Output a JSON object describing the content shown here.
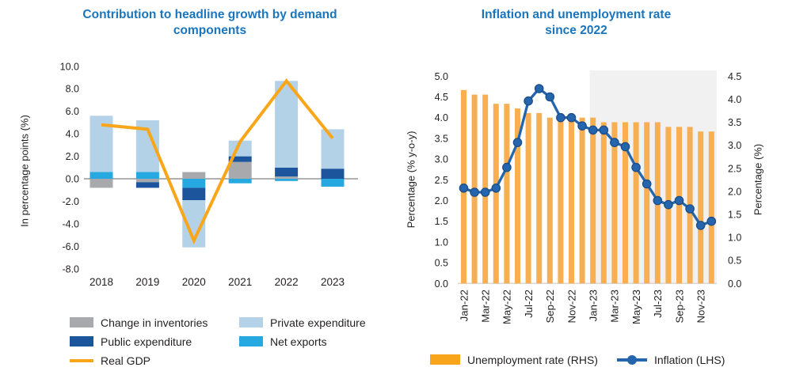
{
  "colors": {
    "title": "#1B75BC",
    "text": "#231F20",
    "inventories": "#A7A9AC",
    "public_expenditure": "#1D559C",
    "private_expenditure": "#B3D2E8",
    "net_exports": "#25A9E0",
    "real_gdp": "#FAA61A",
    "unemployment_bar": "#F7AF52",
    "unemployment_legend": "#F9A51C",
    "inflation": "#2565AE",
    "inflation_marker_edge": "#1B4B84",
    "zero_line": "#808080",
    "baseline": "#D8D8D8",
    "forecast_shade": "#F1F1F2"
  },
  "chart_data": [
    {
      "type": "stacked-bar-line",
      "title": "Contribution to headline growth by demand components",
      "title_lines": [
        "Contribution to headline growth by demand",
        "components"
      ],
      "ylabel": "In percentage points (%)",
      "ylim": [
        -8.0,
        10.0
      ],
      "ytick_step": 2.0,
      "yticks": [
        "10.0",
        "8.0",
        "6.0",
        "4.0",
        "2.0",
        "0.0",
        "-2.0",
        "-4.0",
        "-6.0",
        "-8.0"
      ],
      "categories": [
        "2018",
        "2019",
        "2020",
        "2021",
        "2022",
        "2023"
      ],
      "series": [
        {
          "name": "Change in inventories",
          "color_key": "inventories",
          "values": [
            -0.8,
            -0.3,
            0.6,
            1.5,
            0.2,
            0.0
          ]
        },
        {
          "name": "Net exports",
          "color_key": "net_exports",
          "values": [
            0.6,
            0.6,
            -0.8,
            -0.4,
            -0.2,
            -0.7
          ]
        },
        {
          "name": "Public expenditure",
          "color_key": "public_expenditure",
          "values": [
            0.0,
            -0.5,
            -1.1,
            0.5,
            0.8,
            0.9
          ]
        },
        {
          "name": "Private expenditure",
          "color_key": "private_expenditure",
          "values": [
            5.0,
            4.6,
            -4.2,
            1.4,
            7.7,
            3.5
          ]
        }
      ],
      "line_series": {
        "name": "Real GDP",
        "color_key": "real_gdp",
        "values": [
          4.8,
          4.4,
          -5.5,
          3.3,
          8.7,
          3.6
        ]
      },
      "legend": [
        {
          "label": "Change in inventories",
          "swatch": "rect",
          "color_key": "inventories"
        },
        {
          "label": "Private expenditure",
          "swatch": "rect",
          "color_key": "private_expenditure"
        },
        {
          "label": "Public expenditure",
          "swatch": "rect",
          "color_key": "public_expenditure"
        },
        {
          "label": "Net exports",
          "swatch": "rect",
          "color_key": "net_exports"
        },
        {
          "label": "Real GDP",
          "swatch": "line",
          "color_key": "real_gdp"
        }
      ]
    },
    {
      "type": "bar-line-dual-axis",
      "title": "Inflation and unemployment rate since 2022",
      "title_lines": [
        "Inflation and unemployment rate",
        "since 2022"
      ],
      "ylabel_left": "Percentage (% y-o-y)",
      "ylabel_right": "Percentage (%)",
      "ylim_left": [
        0.0,
        5.0
      ],
      "ylim_right": [
        0.0,
        4.5
      ],
      "yticks_left": [
        "5.0",
        "4.5",
        "4.0",
        "3.5",
        "3.0",
        "2.5",
        "2.0",
        "1.5",
        "1.0",
        "0.5",
        "0.0"
      ],
      "yticks_right": [
        "4.5",
        "4.0",
        "3.5",
        "3.0",
        "2.5",
        "2.0",
        "1.5",
        "1.0",
        "0.5",
        "0.0"
      ],
      "months": [
        "Jan-22",
        "Feb-22",
        "Mar-22",
        "Apr-22",
        "May-22",
        "Jun-22",
        "Jul-22",
        "Aug-22",
        "Sep-22",
        "Oct-22",
        "Nov-22",
        "Dec-22",
        "Jan-23",
        "Feb-23",
        "Mar-23",
        "Apr-23",
        "May-23",
        "Jun-23",
        "Jul-23",
        "Aug-23",
        "Sep-23",
        "Oct-23",
        "Nov-23",
        "Dec-23"
      ],
      "x_tick_labels": [
        "Jan-22",
        "Mar-22",
        "May-22",
        "Jul-22",
        "Sep-22",
        "Nov-22",
        "Jan-23",
        "Mar-23",
        "May-23",
        "Jul-23",
        "Sep-23",
        "Nov-23"
      ],
      "bar_series": {
        "name": "Unemployment rate (RHS)",
        "axis": "right",
        "color_key": "unemployment_bar",
        "values": [
          4.2,
          4.1,
          4.1,
          3.9,
          3.9,
          3.8,
          3.7,
          3.7,
          3.6,
          3.6,
          3.6,
          3.6,
          3.6,
          3.5,
          3.5,
          3.5,
          3.5,
          3.5,
          3.5,
          3.4,
          3.4,
          3.4,
          3.3,
          3.3
        ]
      },
      "line_series": {
        "name": "Inflation (LHS)",
        "axis": "left",
        "color_key": "inflation",
        "values": [
          2.3,
          2.2,
          2.2,
          2.3,
          2.8,
          3.4,
          4.4,
          4.7,
          4.5,
          4.0,
          4.0,
          3.8,
          3.7,
          3.7,
          3.4,
          3.3,
          2.8,
          2.4,
          2.0,
          1.9,
          2.0,
          1.8,
          1.4,
          1.5
        ]
      },
      "shaded_region": {
        "from_month": "Jan-23",
        "to_month": "Dec-23"
      },
      "legend": [
        {
          "label": "Unemployment rate (RHS)",
          "swatch": "rect",
          "color_key": "unemployment_legend"
        },
        {
          "label": "Inflation (LHS)",
          "swatch": "line-marker",
          "color_key": "inflation"
        }
      ]
    }
  ]
}
